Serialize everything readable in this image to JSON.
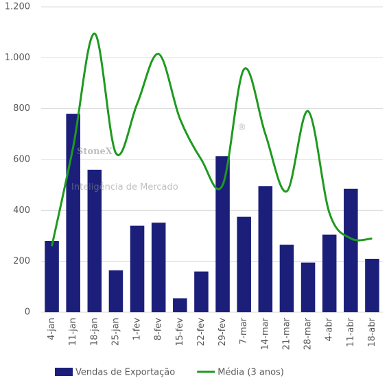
{
  "chart_data": {
    "type": "bar_line",
    "categories": [
      "4-jan",
      "11-jan",
      "18-jan",
      "25-jan",
      "1-fev",
      "8-fev",
      "15-fev",
      "22-fev",
      "29-fev",
      "7-mar",
      "14-mar",
      "21-mar",
      "28-mar",
      "4-abr",
      "11-abr",
      "18-abr"
    ],
    "series": [
      {
        "name": "Vendas de Exportação",
        "type": "bar",
        "color": "#1b1f7a",
        "values": [
          280,
          780,
          560,
          165,
          340,
          352,
          55,
          160,
          613,
          375,
          495,
          265,
          195,
          305,
          485,
          210
        ]
      },
      {
        "name": "Média (3 anos)",
        "type": "line",
        "color": "#1e9a1e",
        "values": [
          260,
          650,
          1095,
          625,
          820,
          1015,
          760,
          600,
          500,
          955,
          700,
          475,
          790,
          390,
          290,
          290
        ]
      }
    ],
    "ylim": [
      0,
      1200
    ],
    "yticks": [
      0,
      200,
      400,
      600,
      800,
      {
        "value": 1000,
        "label": "1.000"
      },
      {
        "value": 1200,
        "label": "1.200"
      }
    ],
    "grid": true,
    "legend": "bottom",
    "watermark": {
      "brand": "StoneX",
      "mark": "®",
      "tagline": "Inteligência de Mercado"
    }
  }
}
